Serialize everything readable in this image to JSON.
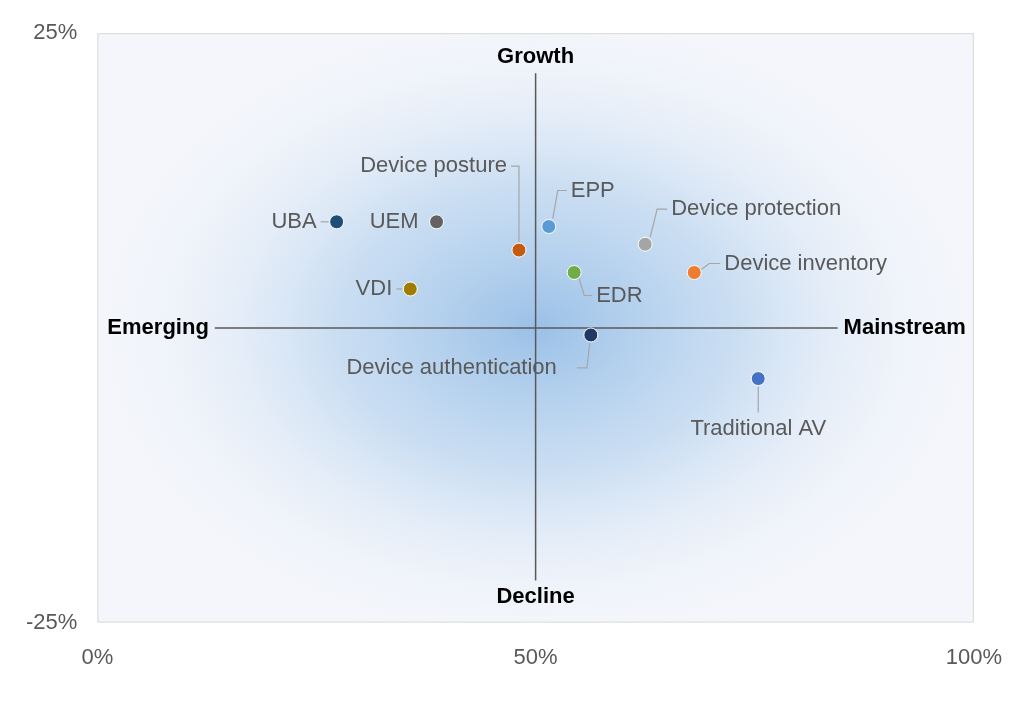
{
  "chart_data": {
    "type": "scatter",
    "point_labels": [
      "UBA",
      "UEM",
      "VDI",
      "Device posture",
      "EPP",
      "EDR",
      "Device protection",
      "Device inventory",
      "Device authentication",
      "Traditional AV"
    ],
    "x": [
      27.3,
      38.7,
      35.7,
      48.1,
      51.5,
      54.4,
      62.5,
      68.1,
      56.3,
      75.4
    ],
    "values": [
      9.0,
      9.0,
      3.3,
      6.6,
      8.6,
      4.7,
      7.1,
      4.7,
      -0.6,
      -4.3
    ],
    "colors": [
      "#1f4e79",
      "#636363",
      "#a07c00",
      "#c55a11",
      "#5b9bd5",
      "#70ad47",
      "#a5a5a5",
      "#ed7d31",
      "#203864",
      "#4472c4"
    ],
    "xlim": [
      0,
      100
    ],
    "xticks": [
      {
        "value": 0,
        "label": "0%"
      },
      {
        "value": 50,
        "label": "50%"
      },
      {
        "value": 100,
        "label": "100%"
      }
    ],
    "ylim": [
      -25,
      25
    ],
    "yticks": [
      {
        "value": -25,
        "label": "-25%"
      },
      {
        "value": 25,
        "label": "25%"
      }
    ],
    "quadrant_lines": {
      "x": 50,
      "y": 0
    },
    "annotations": [
      {
        "text": "Growth",
        "side": "top"
      },
      {
        "text": "Decline",
        "side": "bottom"
      },
      {
        "text": "Emerging",
        "side": "left"
      },
      {
        "text": "Mainstream",
        "side": "right"
      }
    ],
    "grid": false
  }
}
